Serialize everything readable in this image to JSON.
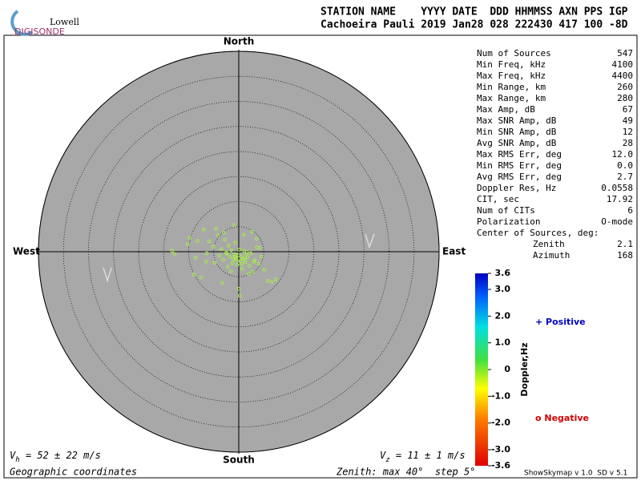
{
  "header": {
    "logo_top": "Lowell",
    "logo_bottom": "DIGISONDE",
    "columns": "STATION NAME    YYYY DATE  DDD HHMMSS AXN PPS IGP",
    "values": "Cachoeira Pauli 2019 Jan28 028 222430 417 100 -8D"
  },
  "stats": {
    "rows": [
      [
        "Num of Sources",
        "547"
      ],
      [
        "Min Freq, kHz",
        "4100"
      ],
      [
        "Max Freq, kHz",
        "4400"
      ],
      [
        "Min Range, km",
        "260"
      ],
      [
        "Max Range, km",
        "280"
      ],
      [
        "Max Amp, dB",
        "67"
      ],
      [
        "Max SNR Amp, dB",
        "49"
      ],
      [
        "Min SNR Amp, dB",
        "12"
      ],
      [
        "Avg SNR Amp, dB",
        "28"
      ],
      [
        "Max RMS Err, deg",
        "12.0"
      ],
      [
        "Min RMS Err, deg",
        "0.0"
      ],
      [
        "Avg RMS Err, deg",
        "2.7"
      ],
      [
        "Doppler Res, Hz",
        "0.0558"
      ],
      [
        "CIT, sec",
        "17.92"
      ],
      [
        "Num of CITs",
        "6"
      ],
      [
        "Polarization",
        "O-mode"
      ]
    ],
    "center_label": "Center of Sources, deg:",
    "center_rows": [
      [
        "Zenith",
        "2.1"
      ],
      [
        "Azimuth",
        "168"
      ]
    ]
  },
  "chart_data": {
    "type": "scatter",
    "color": "#a6f046",
    "directions": {
      "north": "North",
      "south": "South",
      "west": "West",
      "east": "East"
    },
    "xlim": [
      -40,
      40
    ],
    "ylim": [
      -40,
      40
    ],
    "rings": [
      5,
      10,
      15,
      20,
      25,
      30,
      35,
      40
    ],
    "x": [
      -13.3,
      -12.8,
      -10.2,
      -9.8,
      -8.6,
      -7.5,
      -6.4,
      -5.9,
      -5.1,
      -4.8,
      -4.2,
      -3.9,
      -3.5,
      -3.1,
      -2.8,
      -2.5,
      -2.2,
      -2.0,
      -1.8,
      -1.5,
      -1.3,
      -1.1,
      -0.9,
      -0.7,
      -0.5,
      -0.3,
      -0.1,
      0.1,
      0.3,
      0.5,
      0.7,
      0.9,
      1.1,
      1.3,
      1.5,
      1.8,
      2.1,
      2.4,
      2.8,
      3.2,
      3.6,
      4.0,
      4.5,
      5.1,
      5.8,
      6.6,
      7.4,
      -9.0,
      -8.2,
      -4.5,
      -3.0,
      -1.0,
      0.0,
      1.0,
      2.0,
      3.0,
      -6.5,
      -2.4,
      -0.4,
      0.6,
      1.6,
      -1.6,
      0.2,
      -0.8,
      1.2,
      4.2,
      -7.0,
      3.6,
      -3.3,
      2.6
    ],
    "values": [
      0.2,
      -0.4,
      1.5,
      2.8,
      -1.2,
      -5.1,
      -0.3,
      2.1,
      1.0,
      -2.2,
      3.3,
      -0.8,
      0.5,
      -1.6,
      2.4,
      -0.2,
      -3.0,
      1.2,
      -1.0,
      0.3,
      -2.3,
      -1.5,
      -0.5,
      1.8,
      -1.2,
      -2.6,
      -0.7,
      0.4,
      -1.9,
      -0.9,
      -3.4,
      -1.4,
      0.2,
      -2.1,
      -0.6,
      -1.1,
      -2.8,
      -0.3,
      -4.0,
      -1.7,
      0.9,
      -2.4,
      -1.0,
      -3.6,
      -5.8,
      -6.0,
      -5.5,
      -4.6,
      2.2,
      4.6,
      3.8,
      5.3,
      -7.4,
      3.4,
      -4.4,
      -2.0,
      -2.0,
      -0.4,
      -1.7,
      -2.4,
      -0.1,
      -3.9,
      -8.8,
      -1.0,
      -1.5,
      0.8,
      4.4,
      2.6,
      -6.2,
      4.0
    ],
    "vh": {
      "symbol": "V",
      "sub": "h",
      "rest": " = 52 ± 22 m/s"
    },
    "vz": {
      "symbol": "V",
      "sub": "z",
      "rest": " = 11 ± 1 m/s"
    },
    "coords": "Geographic coordinates",
    "zenith_note": "Zenith: max 40°  step 5°"
  },
  "colorbar": {
    "label": "Doppler,Hz",
    "lim": [
      -3.6,
      3.6
    ],
    "ticks": [
      3.6,
      {
        "value": 3.0,
        "label": "3.0"
      },
      {
        "value": 2.0,
        "label": "2.0"
      },
      {
        "value": 1.0,
        "label": "1.0"
      },
      0,
      {
        "value": -1.0,
        "label": "-1.0"
      },
      {
        "value": -2.0,
        "label": "-2.0"
      },
      {
        "value": -3.0,
        "label": "-3.0"
      },
      -3.6
    ],
    "positive": "+ Positive",
    "negative": "o Negative"
  },
  "footer": "ShowSkymap v 1.0  SD v 5.1"
}
